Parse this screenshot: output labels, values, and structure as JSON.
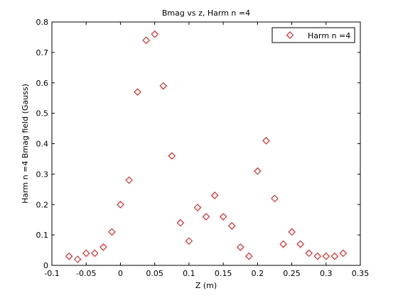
{
  "chart_data": {
    "type": "scatter",
    "title": "Bmag vs z, Harm n =4",
    "xlabel": "Z (m)",
    "ylabel": "Harm n =4 Bmag field (Gauss)",
    "xlim": [
      -0.1,
      0.35
    ],
    "ylim": [
      0,
      0.8
    ],
    "xticks": [
      -0.1,
      -0.05,
      0,
      0.05,
      0.1,
      0.15,
      0.2,
      0.25,
      0.3,
      0.35
    ],
    "xtick_labels": [
      "-0.1",
      "-0.05",
      "0",
      "0.05",
      "0.1",
      "0.15",
      "0.2",
      "0.25",
      "0.3",
      "0.35"
    ],
    "yticks": [
      0,
      0.1,
      0.2,
      0.3,
      0.4,
      0.5,
      0.6,
      0.7,
      0.8
    ],
    "ytick_labels": [
      "0",
      "0.1",
      "0.2",
      "0.3",
      "0.4",
      "0.5",
      "0.6",
      "0.7",
      "0.8"
    ],
    "grid": false,
    "legend_position": "top-right",
    "marker": "diamond",
    "color": "#ff0000",
    "series": [
      {
        "name": "Harm n =4",
        "x": [
          -0.075,
          -0.0625,
          -0.05,
          -0.0375,
          -0.025,
          -0.0125,
          0,
          0.0125,
          0.025,
          0.0375,
          0.05,
          0.0625,
          0.075,
          0.0875,
          0.1,
          0.1125,
          0.125,
          0.1375,
          0.15,
          0.1625,
          0.175,
          0.1875,
          0.2,
          0.2125,
          0.225,
          0.2375,
          0.25,
          0.2625,
          0.275,
          0.2875,
          0.3,
          0.3125,
          0.325
        ],
        "y": [
          0.03,
          0.02,
          0.04,
          0.04,
          0.06,
          0.11,
          0.2,
          0.28,
          0.57,
          0.74,
          0.76,
          0.59,
          0.36,
          0.14,
          0.08,
          0.19,
          0.16,
          0.23,
          0.16,
          0.13,
          0.06,
          0.03,
          0.31,
          0.41,
          0.22,
          0.07,
          0.11,
          0.07,
          0.04,
          0.03,
          0.03,
          0.03,
          0.04
        ]
      }
    ]
  }
}
